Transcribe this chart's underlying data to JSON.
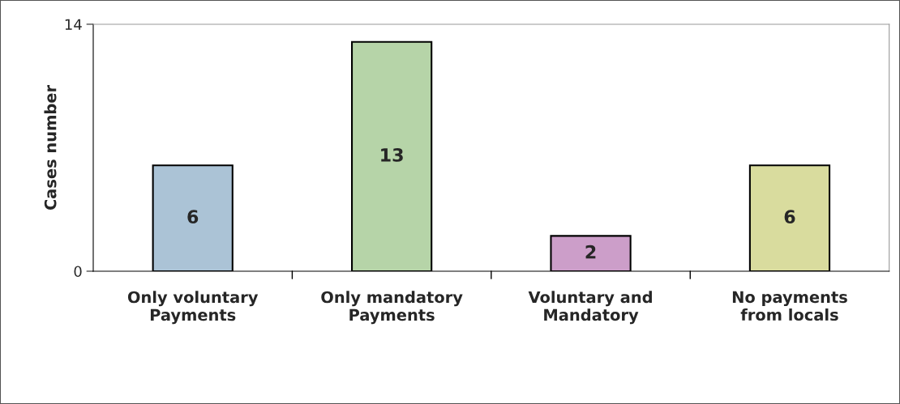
{
  "chart_data": {
    "type": "bar",
    "ylabel": "Cases number",
    "categories": [
      "Only voluntary\nPayments",
      "Only mandatory\nPayments",
      "Voluntary and\nMandatory",
      "No payments\nfrom locals"
    ],
    "values": [
      6,
      13,
      2,
      6
    ],
    "colors": [
      "#abc3d6",
      "#b6d4a8",
      "#cc9ec9",
      "#d9dc9e"
    ],
    "ylim": [
      0,
      14
    ],
    "yticks": [
      0,
      14
    ],
    "data_labels": true,
    "grid": false,
    "legend": false
  }
}
